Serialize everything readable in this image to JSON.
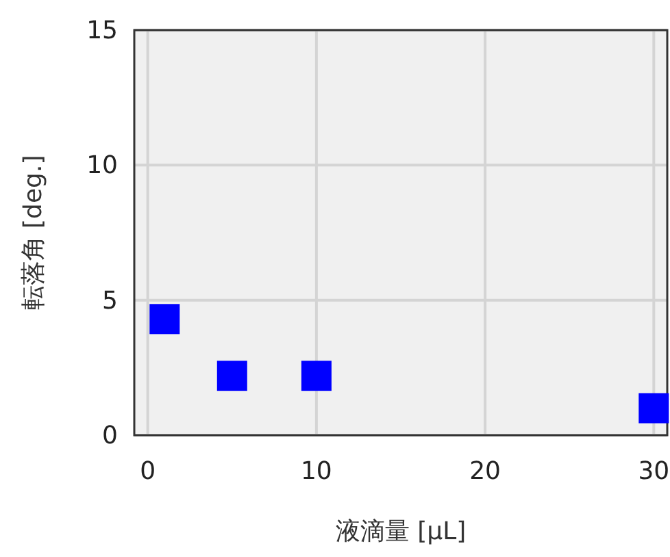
{
  "chart_data": {
    "type": "scatter",
    "xlabel": "液滴量 [μL]",
    "ylabel": "転落角 [deg.]",
    "x": [
      1,
      5,
      10,
      30
    ],
    "values": [
      4.3,
      2.2,
      2.2,
      1.0
    ],
    "color": "#0000ff",
    "marker": "square",
    "xlim": [
      -0.8,
      30.8
    ],
    "ylim": [
      0,
      15
    ],
    "xticks": [
      0,
      10,
      20,
      30
    ],
    "yticks": [
      0,
      5,
      10,
      15
    ],
    "grid": true
  }
}
